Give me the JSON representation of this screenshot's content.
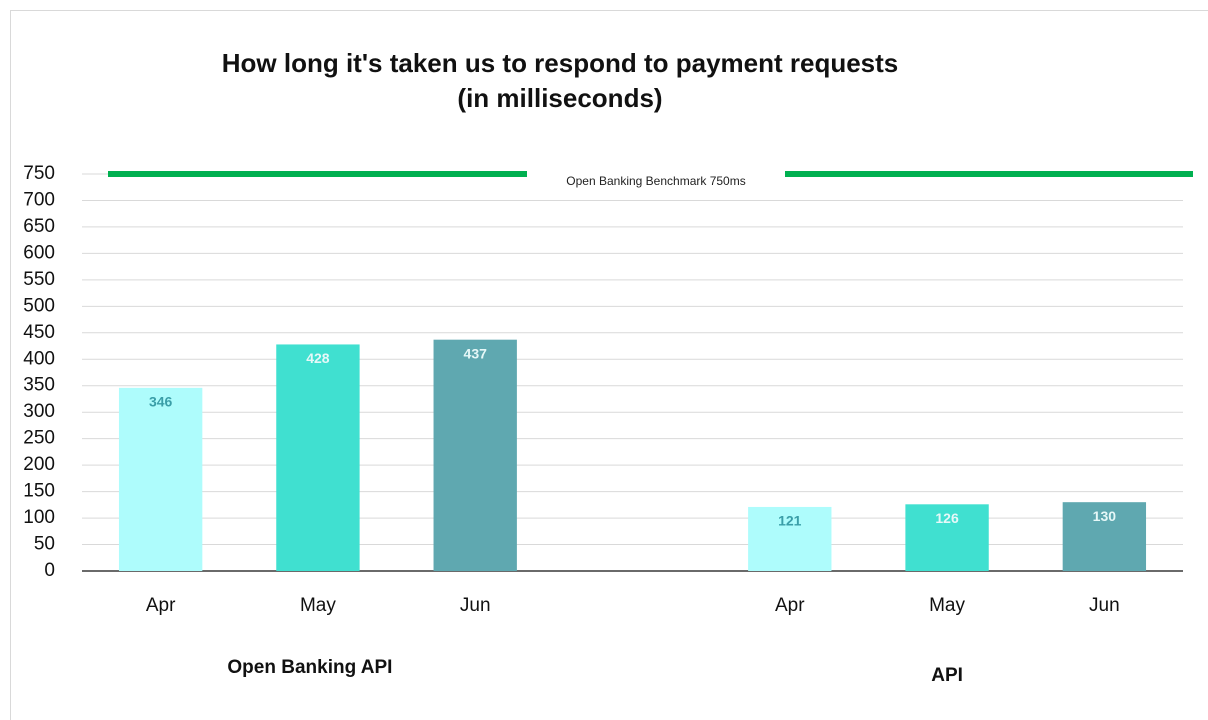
{
  "chart_data": {
    "type": "bar",
    "title": "How long it's taken us to respond to payment requests",
    "subtitle": "(in milliseconds)",
    "groups": [
      {
        "name": "Open Banking API",
        "categories": [
          "Apr",
          "May",
          "Jun"
        ],
        "values": [
          346,
          428,
          437
        ]
      },
      {
        "name": "API",
        "categories": [
          "Apr",
          "May",
          "Jun"
        ],
        "values": [
          121,
          126,
          130
        ]
      }
    ],
    "colors": [
      "#aefcfc",
      "#40e0d0",
      "#5fa8b0"
    ],
    "label_colors": [
      "#3a9ea8",
      "#e6f8f8",
      "#e6f8f8"
    ],
    "reference_line": {
      "value": 750,
      "label": "Open Banking Benchmark 750ms",
      "color": "#00b050"
    },
    "ylim": [
      0,
      750
    ],
    "yticks": [
      0,
      50,
      100,
      150,
      200,
      250,
      300,
      350,
      400,
      450,
      500,
      550,
      600,
      650,
      700,
      750
    ],
    "grid": true
  }
}
